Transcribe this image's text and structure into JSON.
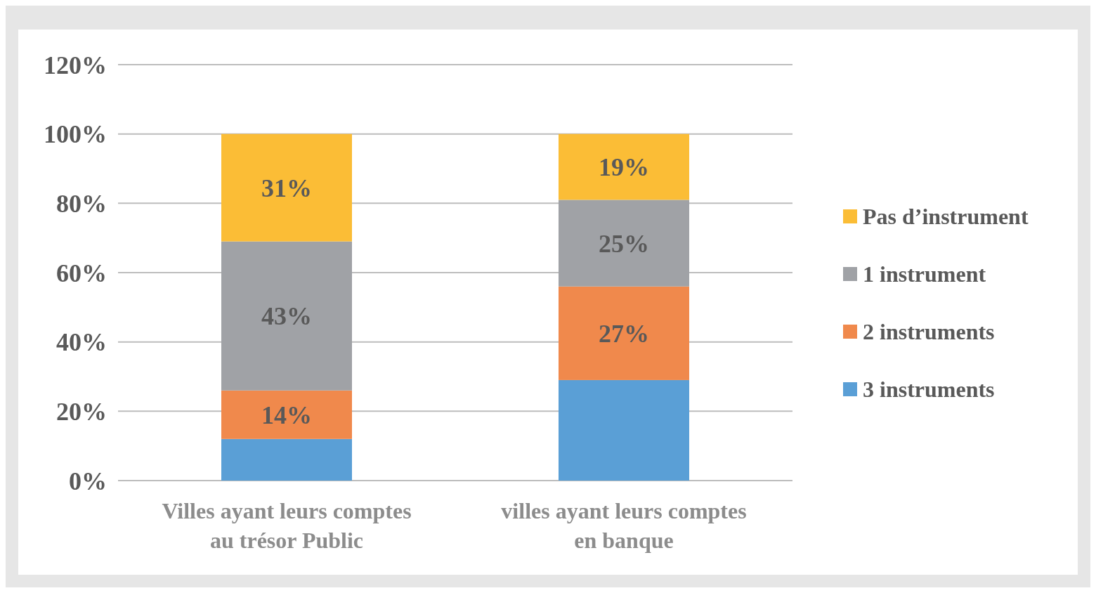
{
  "chart_data": {
    "type": "bar",
    "stacked": true,
    "categories": [
      "Villes ayant leurs comptes au trésor Public",
      "villes ayant leurs comptes en banque"
    ],
    "series": [
      {
        "name": "3 instruments",
        "color": "#5a9fd6",
        "values": [
          12,
          29
        ],
        "value_labels": [
          null,
          null
        ]
      },
      {
        "name": "2 instruments",
        "color": "#f0894c",
        "values": [
          14,
          27
        ],
        "value_labels": [
          "14%",
          "27%"
        ]
      },
      {
        "name": "1 instrument",
        "color": "#a0a2a6",
        "values": [
          43,
          25
        ],
        "value_labels": [
          "43%",
          "25%"
        ]
      },
      {
        "name": "Pas d’instrument",
        "color": "#fbbd36",
        "values": [
          31,
          19
        ],
        "value_labels": [
          "31%",
          "19%"
        ]
      }
    ],
    "ylim": [
      0,
      120
    ],
    "yticks": [
      {
        "value": 0,
        "label": "0%"
      },
      {
        "value": 20,
        "label": "20%"
      },
      {
        "value": 40,
        "label": "40%"
      },
      {
        "value": 60,
        "label": "60%"
      },
      {
        "value": 80,
        "label": "80%"
      },
      {
        "value": 100,
        "label": "100%"
      },
      {
        "value": 120,
        "label": "120%"
      }
    ],
    "grid": "y",
    "legend": "right"
  }
}
